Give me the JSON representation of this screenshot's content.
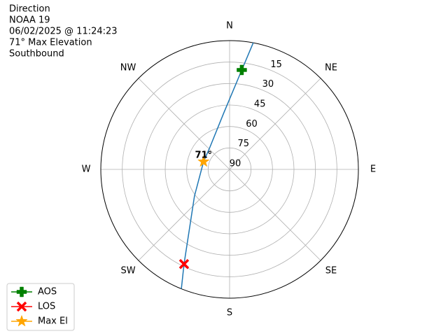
{
  "chart_data": {
    "type": "polar",
    "title_lines": [
      "Direction",
      "NOAA 19",
      "06/02/2025 @ 11:24:23",
      "71° Max Elevation",
      "Southbound"
    ],
    "rlim": [
      90,
      0
    ],
    "rticks": [
      90,
      75,
      60,
      45,
      30,
      15
    ],
    "thetaticks": [
      {
        "value": 0,
        "label": "N"
      },
      {
        "value": 45,
        "label": "NE"
      },
      {
        "value": 90,
        "label": "E"
      },
      {
        "value": 135,
        "label": "SE"
      },
      {
        "value": 180,
        "label": "S"
      },
      {
        "value": 225,
        "label": "SW"
      },
      {
        "value": 270,
        "label": "W"
      },
      {
        "value": 315,
        "label": "NW"
      }
    ],
    "grid": true,
    "legend": "lower left",
    "track": {
      "color": "#1f77b4",
      "theta": [
        10.6,
        7,
        354.4,
        318.8,
        286.6,
        232.8,
        213.4,
        205.7,
        202
      ],
      "r": [
        0,
        20,
        50,
        69.2,
        71,
        59.2,
        38.6,
        16.6,
        0
      ]
    },
    "series": [
      {
        "name": "AOS",
        "color": "green",
        "marker": "plus",
        "theta": [
          7
        ],
        "r": [
          20
        ]
      },
      {
        "name": "LOS",
        "color": "red",
        "marker": "x",
        "theta": [
          205.7
        ],
        "r": [
          16.6
        ]
      },
      {
        "name": "Max El",
        "color": "orange",
        "marker": "star",
        "theta": [
          286.6
        ],
        "r": [
          71
        ]
      }
    ],
    "annotation": {
      "text": "71°"
    }
  }
}
